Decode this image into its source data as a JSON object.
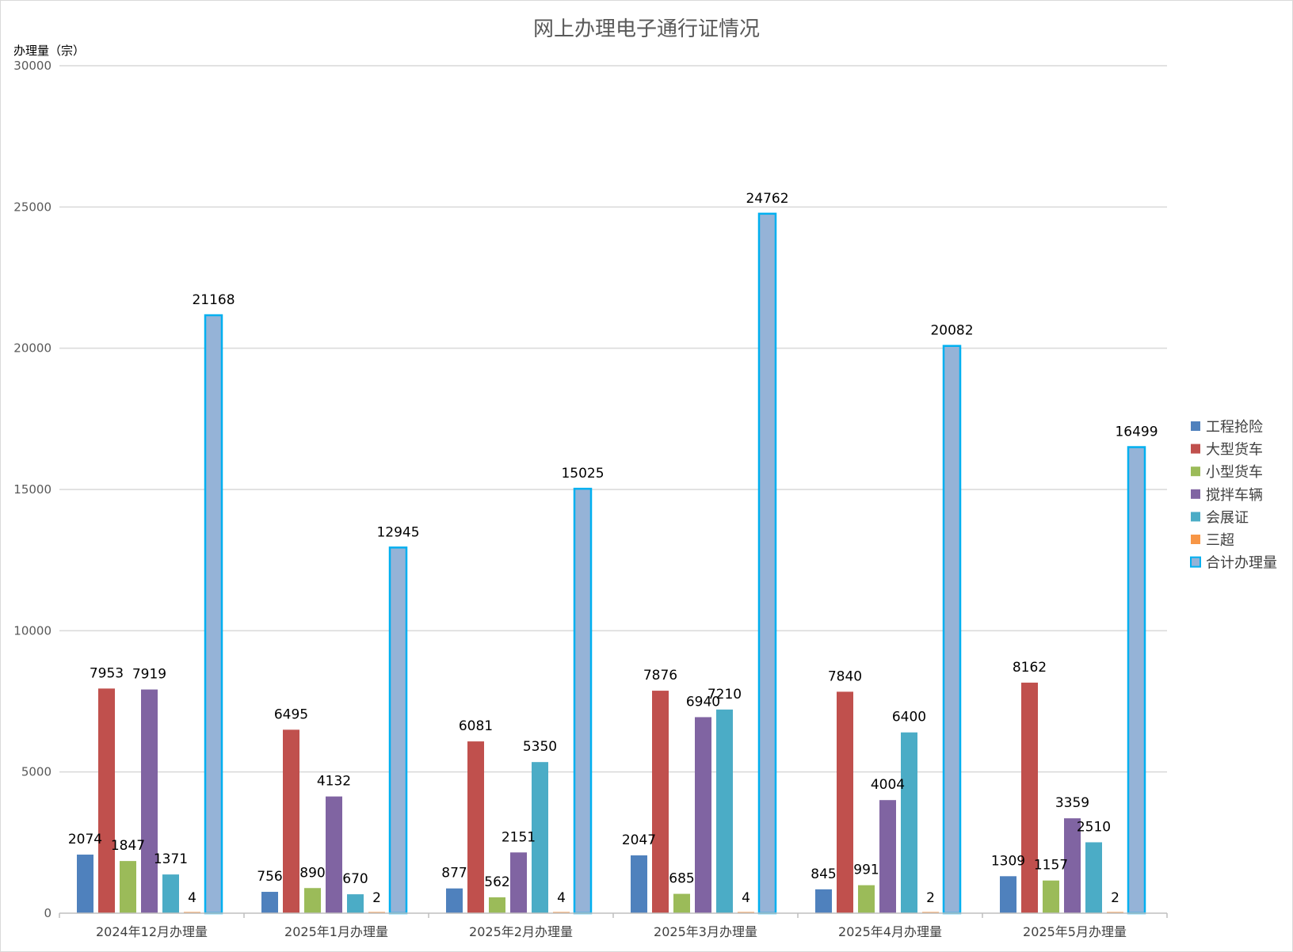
{
  "chart_data": {
    "type": "bar",
    "title": "网上办理电子通行证情况",
    "ylabel": "办理量（宗）",
    "xlabel": "",
    "ylim": [
      0,
      30000
    ],
    "yticks": [
      0,
      5000,
      10000,
      15000,
      20000,
      25000,
      30000
    ],
    "grid": true,
    "legend_position": "right",
    "categories": [
      "2024年12月办理量",
      "2025年1月办理量",
      "2025年2月办理量",
      "2025年3月办理量",
      "2025年4月办理量",
      "2025年5月办理量"
    ],
    "series": [
      {
        "name": "工程抢险",
        "color": "#4f81bd",
        "values": [
          2074,
          756,
          877,
          2047,
          845,
          1309
        ]
      },
      {
        "name": "大型货车",
        "color": "#c0504d",
        "values": [
          7953,
          6495,
          6081,
          7876,
          7840,
          8162
        ]
      },
      {
        "name": "小型货车",
        "color": "#9bbb59",
        "values": [
          1847,
          890,
          562,
          685,
          991,
          1157
        ]
      },
      {
        "name": "搅拌车辆",
        "color": "#8064a2",
        "values": [
          7919,
          4132,
          2151,
          6940,
          4004,
          3359
        ]
      },
      {
        "name": "会展证",
        "color": "#4bacc6",
        "values": [
          1371,
          670,
          5350,
          7210,
          6400,
          2510
        ]
      },
      {
        "name": "三超",
        "color": "#f79646",
        "values": [
          4,
          2,
          4,
          4,
          2,
          2
        ]
      },
      {
        "name": "合计办理量",
        "color": "#95b3d7",
        "border_color": "#00b0f0",
        "values": [
          21168,
          12945,
          15025,
          24762,
          20082,
          16499
        ]
      }
    ]
  }
}
